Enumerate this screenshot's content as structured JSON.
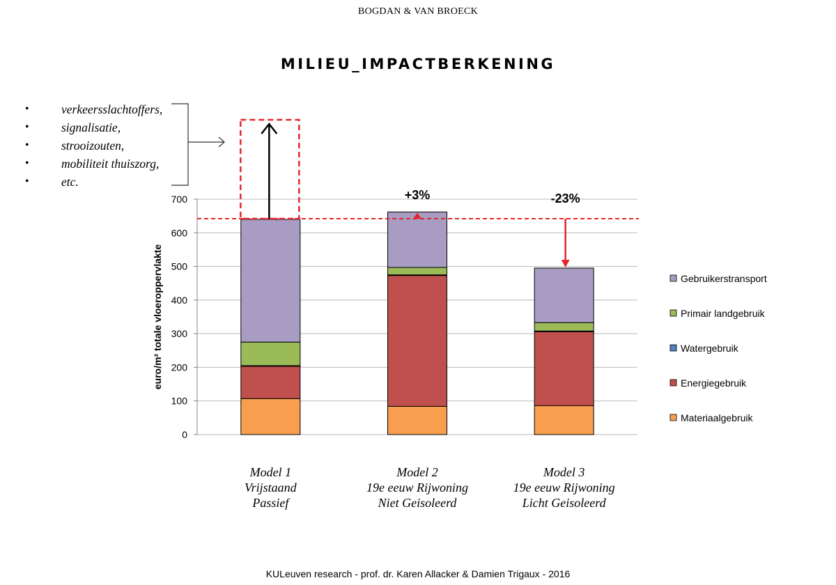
{
  "header": "BOGDAN & VAN BROECK",
  "title": "MILIEU_IMPACTBERKENING",
  "bullets": [
    "verkeersslachtoffers,",
    "signalisatie,",
    "strooizouten,",
    "mobiliteit thuiszorg,",
    "etc."
  ],
  "footer": "KULeuven research - prof. dr. Karen Allacker & Damien Trigaux - 2016",
  "chart_data": {
    "type": "bar",
    "stacked": true,
    "categories": [
      [
        "Model 1",
        "Vrijstaand",
        "Passief"
      ],
      [
        "Model 2",
        "19e eeuw Rijwoning",
        "Niet Geisoleerd"
      ],
      [
        "Model 3",
        "19e eeuw Rijwoning",
        "Licht Geisoleerd"
      ]
    ],
    "series": [
      {
        "name": "Materiaalgebruik",
        "color": "#F79F4F",
        "values": [
          107,
          84,
          86
        ]
      },
      {
        "name": "Energiegebruik",
        "color": "#C0504D",
        "values": [
          96,
          389,
          220
        ]
      },
      {
        "name": "Watergebruik",
        "color": "#4F81BD",
        "values": [
          2,
          2,
          2
        ]
      },
      {
        "name": "Primair landgebruik",
        "color": "#9BBB59",
        "values": [
          70,
          22,
          25
        ]
      },
      {
        "name": "Gebruikerstransport",
        "color": "#A89CC2",
        "values": [
          365,
          165,
          162
        ]
      }
    ],
    "ylabel": "euro/m² totale vloeroppervlakte",
    "ylim": [
      0,
      700
    ],
    "yticks": [
      0,
      100,
      200,
      300,
      400,
      500,
      600,
      700
    ],
    "grid": true,
    "legend_order": [
      "Gebruikerstransport",
      "Primair landgebruik",
      "Watergebruik",
      "Energiegebruik",
      "Materiaalgebruik"
    ],
    "reference_line": {
      "value": 642,
      "color": "#E3262B"
    },
    "annotations": [
      "+3%",
      "-23%"
    ]
  }
}
